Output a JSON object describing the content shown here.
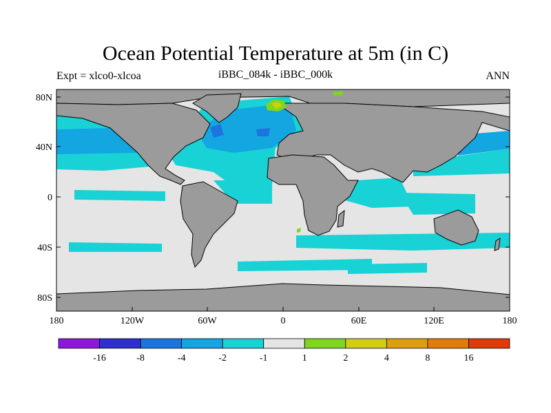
{
  "title": "Ocean Potential Temperature at 5m (in C)",
  "subtitle_left": "Expt = xlco0-xlcoa",
  "subtitle_center": "iBBC_084k - iBBC_000k",
  "subtitle_right": "ANN",
  "lat_labels": [
    "80N",
    "40N",
    "0",
    "40S",
    "80S"
  ],
  "lon_labels": [
    "180",
    "120W",
    "60W",
    "0",
    "60E",
    "120E",
    "180"
  ],
  "colorbar": {
    "colors": [
      "#8b17e0",
      "#2d2fd2",
      "#1e74de",
      "#13a6e0",
      "#18d2d6",
      "#e5e5e5",
      "#80d61b",
      "#d1ce12",
      "#dca00c",
      "#e07b0c",
      "#e03a0b"
    ],
    "labels": [
      "-16",
      "-8",
      "-4",
      "-2",
      "-1",
      "1",
      "2",
      "4",
      "8",
      "16"
    ]
  },
  "colors": {
    "land": "#9b9b9b",
    "no_change": "#e5e5e5",
    "cool_light": "#18d2d6",
    "cool_mid": "#13a6e0",
    "cool_strong": "#1e74de",
    "cool_max": "#2d2fd2",
    "warm_light": "#80d61b",
    "warm_mid": "#d1ce12"
  }
}
